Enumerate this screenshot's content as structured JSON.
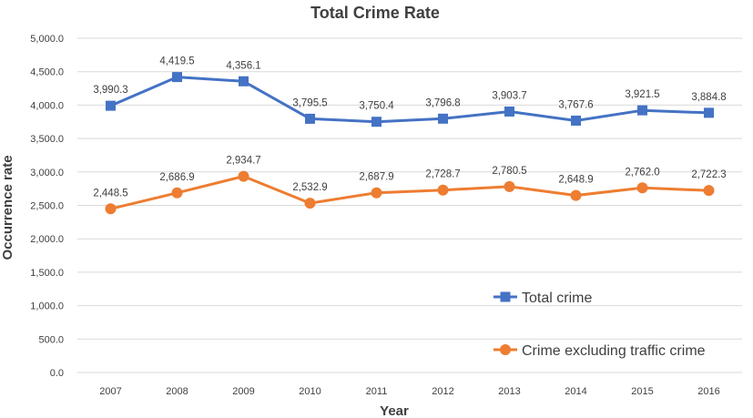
{
  "chart_data": {
    "type": "line",
    "title": "Total Crime Rate",
    "xlabel": "Year",
    "ylabel": "Occurrence rate",
    "ylim": [
      0,
      5000
    ],
    "y_ticks": [
      "0.0",
      "500.0",
      "1,000.0",
      "1,500.0",
      "2,000.0",
      "2,500.0",
      "3,000.0",
      "3,500.0",
      "4,000.0",
      "4,500.0",
      "5,000.0"
    ],
    "grid": true,
    "legend_position": "bottom-right",
    "categories": [
      "2007",
      "2008",
      "2009",
      "2010",
      "2011",
      "2012",
      "2013",
      "2014",
      "2015",
      "2016"
    ],
    "series": [
      {
        "name": "Total crime",
        "color": "#4472c4",
        "marker": "square",
        "values": [
          3990.3,
          4419.5,
          4356.1,
          3795.5,
          3750.4,
          3796.8,
          3903.7,
          3767.6,
          3921.5,
          3884.8
        ],
        "labels": [
          "3,990.3",
          "4,419.5",
          "4,356.1",
          "3,795.5",
          "3,750.4",
          "3,796.8",
          "3,903.7",
          "3,767.6",
          "3,921.5",
          "3,884.8"
        ]
      },
      {
        "name": "Crime excluding traffic crime",
        "color": "#ed7d31",
        "marker": "circle",
        "values": [
          2448.5,
          2686.9,
          2934.7,
          2532.9,
          2687.9,
          2728.7,
          2780.5,
          2648.9,
          2762.0,
          2722.3
        ],
        "labels": [
          "2,448.5",
          "2,686.9",
          "2,934.7",
          "2,532.9",
          "2,687.9",
          "2,728.7",
          "2,780.5",
          "2,648.9",
          "2,762.0",
          "2,722.3"
        ]
      }
    ]
  }
}
